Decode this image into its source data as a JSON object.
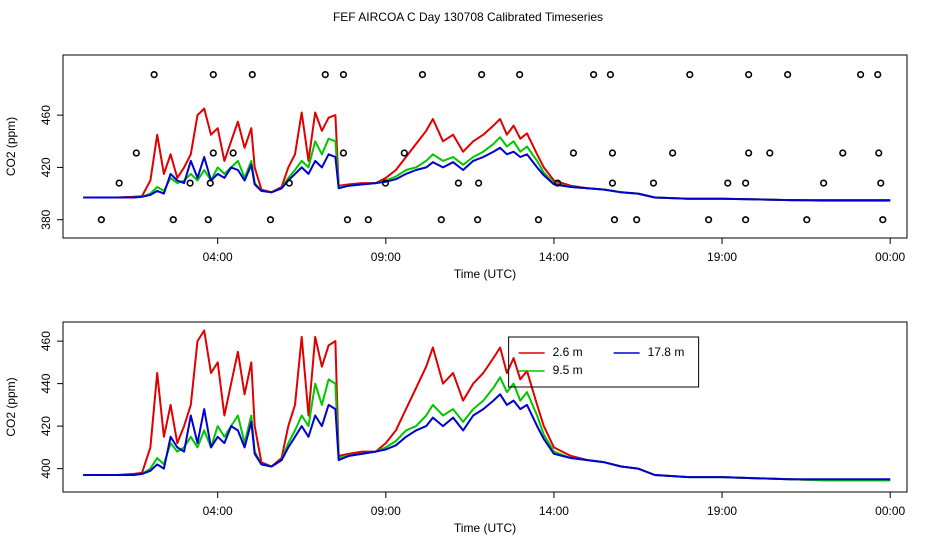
{
  "title": "FEF AIRCOA C  Day 130708  Calibrated Timeseries",
  "chart_data": [
    {
      "type": "line",
      "x_label": "Time (UTC)",
      "y_label": "CO2 (ppm)",
      "xlim": [
        -0.6,
        24.5
      ],
      "ylim": [
        366,
        506
      ],
      "xticks": [
        {
          "value": 4,
          "label": "04:00"
        },
        {
          "value": 9,
          "label": "09:00"
        },
        {
          "value": 14,
          "label": "14:00"
        },
        {
          "value": 19,
          "label": "19:00"
        },
        {
          "value": 24,
          "label": "00:00"
        }
      ],
      "yticks": [
        380,
        420,
        460
      ],
      "x": [
        0,
        0.5,
        1,
        1.5,
        1.75,
        2.0,
        2.2,
        2.4,
        2.6,
        2.8,
        3.0,
        3.2,
        3.4,
        3.6,
        3.8,
        4.0,
        4.2,
        4.4,
        4.6,
        4.8,
        5.0,
        5.1,
        5.3,
        5.6,
        5.9,
        6.1,
        6.3,
        6.5,
        6.7,
        6.9,
        7.1,
        7.3,
        7.5,
        7.6,
        7.9,
        8.3,
        8.7,
        9.0,
        9.3,
        9.6,
        9.9,
        10.2,
        10.4,
        10.7,
        11.0,
        11.3,
        11.6,
        11.9,
        12.2,
        12.4,
        12.6,
        12.8,
        13.0,
        13.2,
        13.5,
        13.7,
        14.0,
        14.5,
        15.0,
        15.5,
        16.0,
        16.5,
        17.0,
        18.0,
        19.0,
        20.0,
        21.0,
        22.0,
        23.0,
        24.0
      ],
      "series": [
        {
          "color": "#e00000",
          "values": [
            397,
            397,
            397,
            397.5,
            398,
            410,
            445,
            415,
            430,
            412,
            420,
            430,
            460,
            465,
            445,
            450,
            425,
            440,
            455,
            435,
            450,
            420,
            403,
            401,
            405,
            420,
            430,
            462,
            425,
            462,
            448,
            458,
            460,
            406,
            407,
            408,
            408,
            412,
            418,
            428,
            438,
            448,
            457,
            440,
            445,
            432,
            440,
            445,
            452,
            457,
            445,
            452,
            442,
            446,
            430,
            420,
            410,
            406,
            404,
            403,
            401,
            400,
            397,
            396,
            396,
            395.5,
            395,
            394.5,
            394.5,
            394.5
          ]
        },
        {
          "color": "#00c800",
          "values": [
            397,
            397,
            397,
            397,
            397.5,
            400,
            405,
            402,
            412,
            408,
            410,
            415,
            410,
            418,
            410,
            420,
            415,
            420,
            425,
            412,
            425,
            408,
            402,
            401,
            404,
            412,
            418,
            425,
            420,
            440,
            430,
            442,
            440,
            405,
            406,
            407,
            408,
            410,
            413,
            418,
            420,
            425,
            430,
            425,
            428,
            422,
            428,
            432,
            438,
            443,
            436,
            440,
            432,
            436,
            425,
            416,
            408,
            405,
            404,
            403,
            401,
            400,
            397,
            396,
            396,
            395.5,
            395,
            394.5,
            394.5,
            394.5
          ]
        },
        {
          "color": "#0000d0",
          "values": [
            397,
            397,
            397,
            397,
            397.5,
            399,
            402,
            400,
            415,
            410,
            408,
            425,
            412,
            428,
            410,
            415,
            412,
            420,
            418,
            410,
            422,
            407,
            402,
            401,
            404,
            410,
            415,
            420,
            415,
            425,
            420,
            430,
            428,
            404,
            406,
            407,
            408,
            409,
            411,
            415,
            418,
            420,
            424,
            420,
            424,
            418,
            425,
            428,
            432,
            435,
            430,
            432,
            428,
            430,
            420,
            414,
            407,
            405,
            404,
            403,
            401,
            400,
            397,
            396,
            396,
            395.5,
            395,
            395,
            395,
            395
          ]
        }
      ],
      "points": {
        "color": "#000000",
        "x": [
          2.11,
          3.87,
          5.03,
          7.2,
          7.74,
          10.09,
          11.85,
          12.98,
          15.18,
          15.68,
          18.04,
          19.79,
          20.95,
          23.12,
          23.63,
          1.58,
          3.87,
          4.46,
          7.74,
          9.55,
          14.58,
          15.74,
          17.53,
          19.79,
          20.42,
          22.59,
          23.66,
          1.07,
          3.18,
          3.78,
          6.13,
          8.99,
          11.16,
          11.76,
          14.11,
          15.74,
          16.96,
          19.17,
          19.7,
          22.02,
          23.72,
          0.54,
          2.68,
          3.72,
          5.57,
          7.86,
          8.48,
          10.65,
          11.73,
          13.54,
          15.8,
          16.46,
          18.6,
          19.7,
          21.52,
          23.78
        ],
        "y": [
          491,
          491,
          491,
          491,
          491,
          491,
          491,
          491,
          491,
          491,
          491,
          491,
          491,
          491,
          491,
          431,
          431,
          431,
          431,
          431,
          431,
          431,
          431,
          431,
          431,
          431,
          431,
          408,
          408,
          408,
          408,
          408,
          408,
          408,
          408,
          408,
          408,
          408,
          408,
          408,
          408,
          380,
          380,
          380,
          380,
          380,
          380,
          380,
          380,
          380,
          380,
          380,
          380,
          380,
          380,
          380
        ]
      }
    },
    {
      "type": "line",
      "x_label": "Time (UTC)",
      "y_label": "CO2 (ppm)",
      "legend": "top-center",
      "xlim": [
        -0.6,
        24.5
      ],
      "ylim": [
        389,
        469
      ],
      "xticks": [
        {
          "value": 4,
          "label": "04:00"
        },
        {
          "value": 9,
          "label": "09:00"
        },
        {
          "value": 14,
          "label": "14:00"
        },
        {
          "value": 19,
          "label": "19:00"
        },
        {
          "value": 24,
          "label": "00:00"
        }
      ],
      "yticks": [
        400,
        420,
        440,
        460
      ],
      "x": [
        0,
        0.5,
        1,
        1.5,
        1.75,
        2.0,
        2.2,
        2.4,
        2.6,
        2.8,
        3.0,
        3.2,
        3.4,
        3.6,
        3.8,
        4.0,
        4.2,
        4.4,
        4.6,
        4.8,
        5.0,
        5.1,
        5.3,
        5.6,
        5.9,
        6.1,
        6.3,
        6.5,
        6.7,
        6.9,
        7.1,
        7.3,
        7.5,
        7.6,
        7.9,
        8.3,
        8.7,
        9.0,
        9.3,
        9.6,
        9.9,
        10.2,
        10.4,
        10.7,
        11.0,
        11.3,
        11.6,
        11.9,
        12.2,
        12.4,
        12.6,
        12.8,
        13.0,
        13.2,
        13.5,
        13.7,
        14.0,
        14.5,
        15.0,
        15.5,
        16.0,
        16.5,
        17.0,
        18.0,
        19.0,
        20.0,
        21.0,
        22.0,
        23.0,
        24.0
      ],
      "series": [
        {
          "name": "2.6 m",
          "color": "#e00000",
          "values": [
            397,
            397,
            397,
            397.5,
            398,
            410,
            445,
            415,
            430,
            412,
            420,
            430,
            460,
            465,
            445,
            450,
            425,
            440,
            455,
            435,
            450,
            420,
            403,
            401,
            405,
            420,
            430,
            462,
            425,
            462,
            448,
            458,
            460,
            406,
            407,
            408,
            408,
            412,
            418,
            428,
            438,
            448,
            457,
            440,
            445,
            432,
            440,
            445,
            452,
            457,
            445,
            452,
            442,
            446,
            430,
            420,
            410,
            406,
            404,
            403,
            401,
            400,
            397,
            396,
            396,
            395.5,
            395,
            394.5,
            394.5,
            394.5
          ]
        },
        {
          "name": "9.5 m",
          "color": "#00c800",
          "values": [
            397,
            397,
            397,
            397,
            397.5,
            400,
            405,
            402,
            412,
            408,
            410,
            415,
            410,
            418,
            410,
            420,
            415,
            420,
            425,
            412,
            425,
            408,
            402,
            401,
            404,
            412,
            418,
            425,
            420,
            440,
            430,
            442,
            440,
            405,
            406,
            407,
            408,
            410,
            413,
            418,
            420,
            425,
            430,
            425,
            428,
            422,
            428,
            432,
            438,
            443,
            436,
            440,
            432,
            436,
            425,
            416,
            408,
            405,
            404,
            403,
            401,
            400,
            397,
            396,
            396,
            395.5,
            395,
            394.5,
            394.5,
            394.5
          ]
        },
        {
          "name": "17.8 m",
          "color": "#0000d0",
          "values": [
            397,
            397,
            397,
            397,
            397.5,
            399,
            402,
            400,
            415,
            410,
            408,
            425,
            412,
            428,
            410,
            415,
            412,
            420,
            418,
            410,
            422,
            407,
            402,
            401,
            404,
            410,
            415,
            420,
            415,
            425,
            420,
            430,
            428,
            404,
            406,
            407,
            408,
            409,
            411,
            415,
            418,
            420,
            424,
            420,
            424,
            418,
            425,
            428,
            432,
            435,
            430,
            432,
            428,
            430,
            420,
            414,
            407,
            405,
            404,
            403,
            401,
            400,
            397,
            396,
            396,
            395.5,
            395,
            395,
            395,
            395
          ]
        }
      ]
    }
  ]
}
